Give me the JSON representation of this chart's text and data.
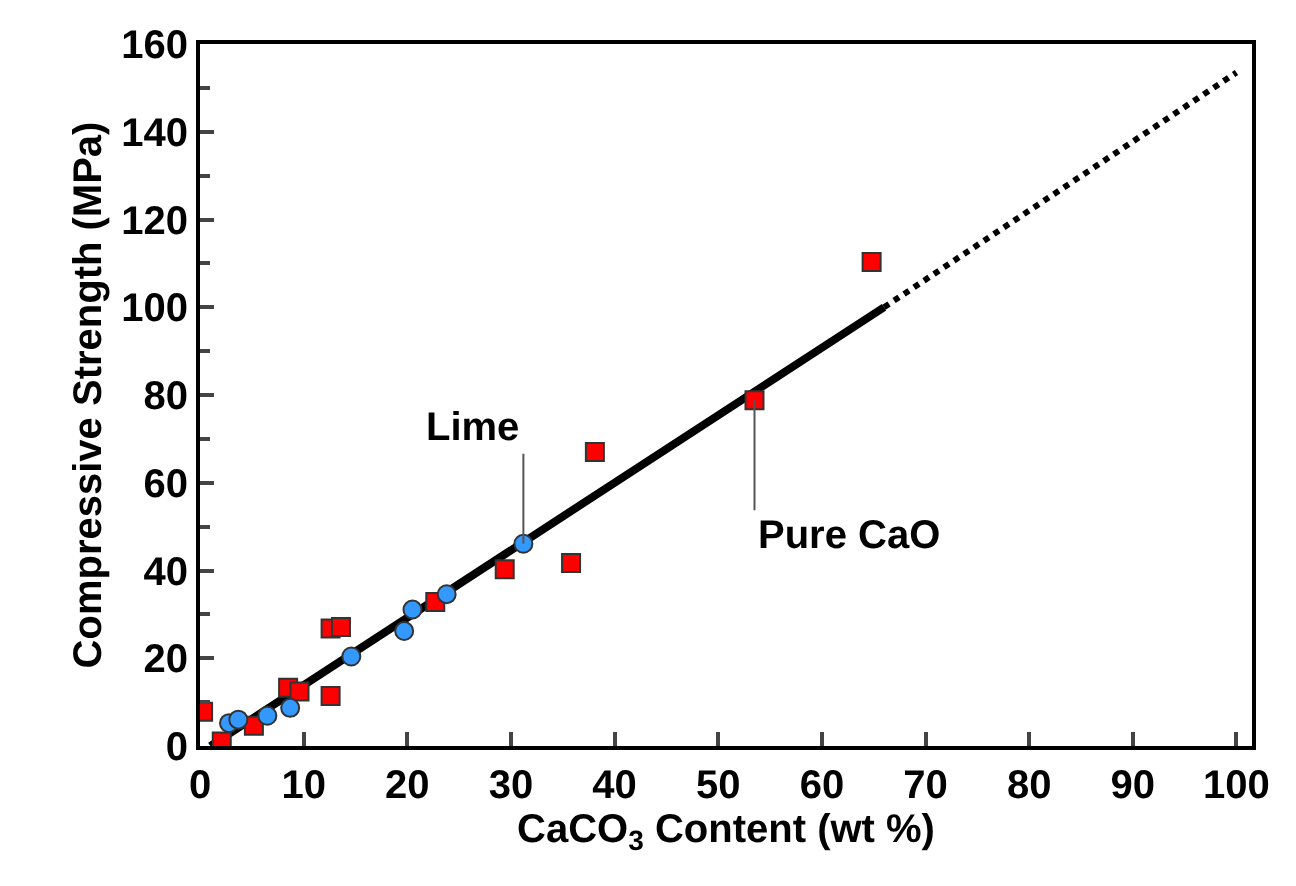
{
  "chart_data": {
    "type": "scatter",
    "xlabel": "CaCO$_{3}$ Content (wt %)",
    "ylabel": "Compressive Strength (MPa)",
    "xlim": [
      0,
      101.5
    ],
    "ylim": [
      0,
      160
    ],
    "xticks": [
      0,
      10,
      20,
      30,
      40,
      50,
      60,
      70,
      80,
      90,
      100
    ],
    "yticks": [
      0,
      20,
      40,
      60,
      80,
      100,
      120,
      140,
      160
    ],
    "series": [
      {
        "type": "line",
        "line_style": "solid",
        "marker": "none",
        "color": "#000000",
        "x": [
          1,
          66
        ],
        "values": [
          0,
          100
        ]
      },
      {
        "type": "line",
        "line_style": "dotted",
        "marker": "none",
        "color": "#000000",
        "x": [
          66,
          100
        ],
        "values": [
          100,
          153.5
        ]
      },
      {
        "marker": "square",
        "color": "#ff0000",
        "x": [
          0.3,
          2.1,
          5.2,
          8.5,
          9.6,
          12.6,
          12.6,
          13.6,
          22.7,
          29.4,
          35.8,
          38.1,
          53.5,
          64.8
        ],
        "values": [
          7.8,
          1,
          4.6,
          13.3,
          12.4,
          11.4,
          26.8,
          27.1,
          32.8,
          40.3,
          41.7,
          67,
          78.8,
          110.3
        ]
      },
      {
        "marker": "circle",
        "color": "#3399ff",
        "x": [
          2.8,
          3.7,
          6.5,
          8.7,
          14.6,
          19.7,
          20.5,
          23.8,
          31.2
        ],
        "values": [
          5.2,
          6,
          6.9,
          8.7,
          20.4,
          26.2,
          31.1,
          34.6,
          46.1
        ]
      }
    ],
    "annotations": [
      {
        "text": "Lime",
        "x": 31.2,
        "y": 46.1
      },
      {
        "text": "Pure CaO",
        "x": 53.5,
        "y": 78.8
      }
    ]
  }
}
